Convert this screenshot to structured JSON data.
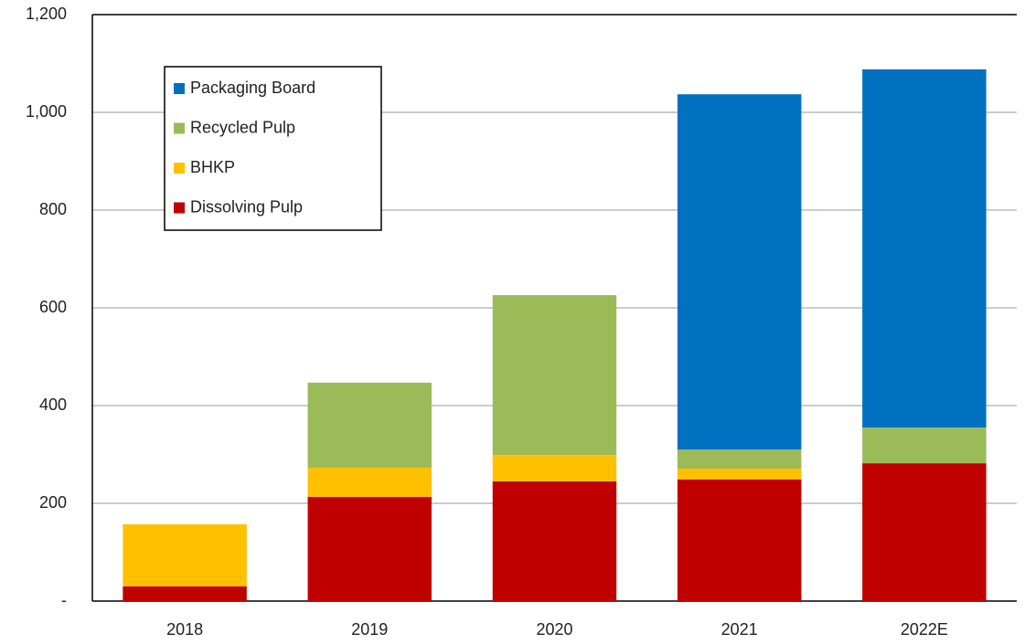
{
  "chart_data": {
    "type": "stacked_bar",
    "categories": [
      "2018",
      "2019",
      "2020",
      "2021",
      "2022E"
    ],
    "series": [
      {
        "name": "Dissolving Pulp",
        "color": "#c00000",
        "values": [
          30,
          213,
          245,
          249,
          282
        ]
      },
      {
        "name": "BHKP",
        "color": "#ffc000",
        "values": [
          127,
          60,
          54,
          22,
          0
        ]
      },
      {
        "name": "Recycled Pulp",
        "color": "#9bbb59",
        "values": [
          0,
          174,
          327,
          39,
          73
        ]
      },
      {
        "name": "Packaging Board",
        "color": "#0070c0",
        "values": [
          0,
          0,
          0,
          727,
          733
        ]
      }
    ],
    "ylim": [
      0,
      1200
    ],
    "yticks": [
      {
        "value": 0,
        "label": "-"
      },
      200,
      400,
      600,
      800,
      {
        "value": 1000,
        "label": "1,000"
      },
      {
        "value": 1200,
        "label": "1,200"
      }
    ],
    "grid": true,
    "legend": "upper left"
  }
}
